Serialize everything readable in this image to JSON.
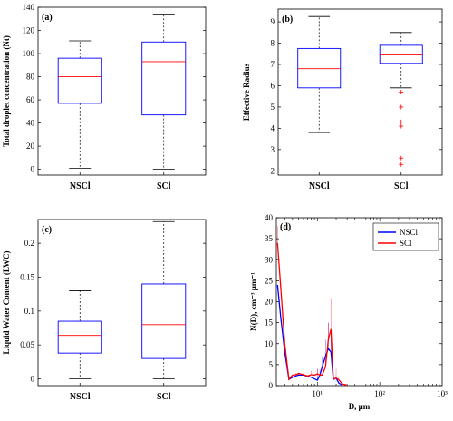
{
  "chart_data": [
    {
      "type": "box",
      "panel_label": "(a)",
      "ylabel": "Total droplet concentration (Nt)",
      "ylim": [
        -5,
        140
      ],
      "yticks": [
        0,
        20,
        40,
        60,
        80,
        100,
        120,
        140
      ],
      "categories": [
        "NSCl",
        "SCl"
      ],
      "boxes": [
        {
          "name": "NSCl",
          "whisker_low": 1,
          "q1": 57,
          "median": 80,
          "q3": 96,
          "whisker_high": 111,
          "outliers": []
        },
        {
          "name": "SCl",
          "whisker_low": 0,
          "q1": 47,
          "median": 93,
          "q3": 110,
          "whisker_high": 134,
          "outliers": []
        }
      ],
      "colors": {
        "box": "#0000ff",
        "median": "#ff0000",
        "outlier": "#ff0000"
      }
    },
    {
      "type": "box",
      "panel_label": "(b)",
      "ylabel": "Effective Radius",
      "ylim": [
        1.8,
        9.6
      ],
      "yticks": [
        2,
        3,
        4,
        5,
        6,
        7,
        8,
        9
      ],
      "categories": [
        "NSCl",
        "SCl"
      ],
      "boxes": [
        {
          "name": "NSCl",
          "whisker_low": 3.8,
          "q1": 5.9,
          "median": 6.8,
          "q3": 7.75,
          "whisker_high": 9.25,
          "outliers": []
        },
        {
          "name": "SCl",
          "whisker_low": 5.9,
          "q1": 7.05,
          "median": 7.45,
          "q3": 7.9,
          "whisker_high": 8.5,
          "outliers": [
            5.7,
            5.0,
            4.3,
            4.1,
            2.6,
            2.3
          ]
        }
      ],
      "colors": {
        "box": "#0000ff",
        "median": "#ff0000",
        "outlier": "#ff0000"
      }
    },
    {
      "type": "box",
      "panel_label": "(c)",
      "ylabel": "Liquid Water Content (LWC)",
      "ylim": [
        -0.01,
        0.235
      ],
      "yticks": [
        0,
        0.05,
        0.1,
        0.15,
        0.2
      ],
      "ytick_labels": [
        "0",
        "0.05",
        "0.1",
        "0.15",
        "0.2"
      ],
      "categories": [
        "NSCl",
        "SCl"
      ],
      "boxes": [
        {
          "name": "NSCl",
          "whisker_low": 0.0,
          "q1": 0.038,
          "median": 0.064,
          "q3": 0.085,
          "whisker_high": 0.13,
          "outliers": []
        },
        {
          "name": "SCl",
          "whisker_low": 0.0,
          "q1": 0.03,
          "median": 0.08,
          "q3": 0.14,
          "whisker_high": 0.232,
          "outliers": []
        }
      ],
      "colors": {
        "box": "#0000ff",
        "median": "#ff0000",
        "outlier": "#ff0000"
      }
    },
    {
      "type": "line",
      "panel_label": "(d)",
      "xlabel": "D, μm",
      "ylabel": "N(D), cm⁻³ μm⁻¹",
      "xscale": "log",
      "xlim": [
        2.2,
        1000
      ],
      "ylim": [
        0,
        40
      ],
      "yticks": [
        0,
        5,
        10,
        15,
        20,
        25,
        30,
        35,
        40
      ],
      "xticks": [
        10,
        100,
        1000
      ],
      "xtick_labels": [
        "10¹",
        "10²",
        "10³"
      ],
      "legend_position": "top-right",
      "series": [
        {
          "name": "NSCl",
          "color": "#0000ff",
          "x": [
            2.3,
            2.6,
            3.0,
            3.5,
            4.0,
            4.5,
            5.0,
            6.0,
            7.0,
            8.0,
            9.0,
            10.0,
            11.0,
            12.0,
            13.5,
            15.0,
            16.5,
            18.0,
            20.0,
            22.0,
            25.0
          ],
          "y": [
            24,
            16,
            8,
            1.5,
            2,
            2.3,
            2.5,
            2.5,
            2.2,
            2.0,
            1.6,
            1.3,
            2.5,
            4.5,
            7.0,
            8.8,
            8.0,
            1.5,
            1.8,
            0.6,
            0.1
          ],
          "error_high": [
            0,
            0,
            0,
            0,
            0,
            0,
            3.0,
            0,
            0,
            0,
            0,
            4.0,
            0,
            7.0,
            11.0,
            15.0,
            13.0,
            0,
            0,
            0,
            0
          ]
        },
        {
          "name": "SCl",
          "color": "#ff0000",
          "x": [
            2.3,
            2.6,
            3.0,
            3.5,
            4.0,
            4.5,
            5.0,
            6.0,
            7.0,
            8.0,
            9.0,
            10.0,
            11.0,
            12.0,
            13.5,
            15.0,
            16.5,
            18.0,
            20.0,
            22.0,
            25.0,
            30.0
          ],
          "y": [
            34,
            23,
            10,
            1.5,
            2.5,
            2.6,
            2.9,
            2.6,
            2.3,
            2.6,
            2.5,
            2.8,
            2.5,
            2.5,
            4.5,
            11.0,
            13.5,
            1.6,
            1.8,
            1.4,
            0.4,
            0.1
          ],
          "error_high": [
            38,
            0,
            0,
            0,
            0,
            3.0,
            3.2,
            3.0,
            2.5,
            3.5,
            0,
            4.0,
            4.0,
            3.0,
            7.0,
            15.0,
            20.8,
            0,
            4.0,
            2.0,
            0,
            0
          ]
        }
      ]
    }
  ]
}
